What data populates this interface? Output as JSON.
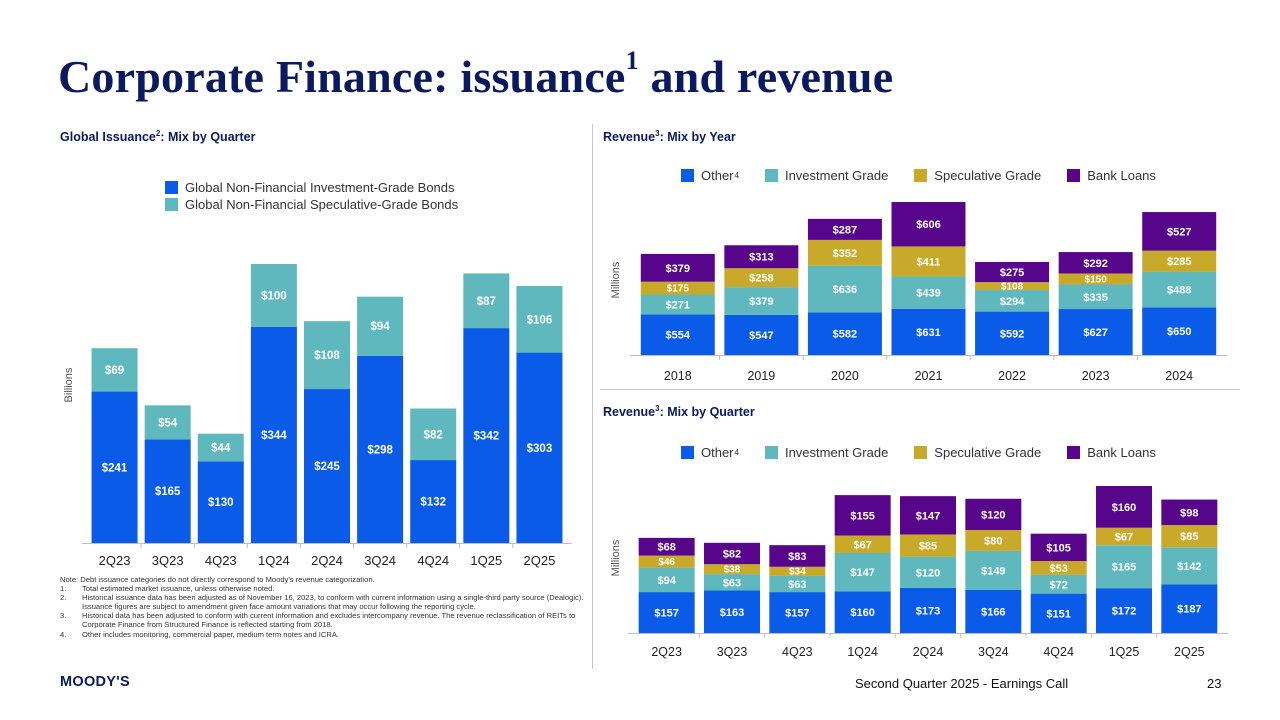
{
  "title": {
    "main": "Corporate Finance: issuance",
    "sup": "1",
    "tail": " and revenue"
  },
  "colors": {
    "blue": "#0a5ce8",
    "teal": "#5eb8bd",
    "gold": "#c9a92a",
    "purple": "#57068c",
    "navy": "#0b1a5e"
  },
  "sections": {
    "issuance": {
      "title": "Global Issuance",
      "sup": "2",
      "tail": ": Mix by Quarter"
    },
    "rev_year": {
      "title": "Revenue",
      "sup": "3",
      "tail": ": Mix by Year"
    },
    "rev_quarter": {
      "title": "Revenue",
      "sup": "3",
      "tail": ": Mix by Quarter"
    }
  },
  "legends": {
    "issuance": [
      "Global Non-Financial Investment-Grade Bonds",
      "Global Non-Financial Speculative-Grade Bonds"
    ],
    "revenue": {
      "other": "Other",
      "other_sup": "4",
      "ig": "Investment Grade",
      "sg": "Speculative Grade",
      "bl": "Bank Loans"
    }
  },
  "chart_data": [
    {
      "type": "bar",
      "stacked": true,
      "title": "Global Issuance: Mix by Quarter",
      "ylabel": "Billions",
      "categories": [
        "2Q23",
        "3Q23",
        "4Q23",
        "1Q24",
        "2Q24",
        "3Q24",
        "4Q24",
        "1Q25",
        "2Q25"
      ],
      "series": [
        {
          "name": "Global Non-Financial Investment-Grade Bonds",
          "values": [
            241,
            165,
            130,
            344,
            245,
            298,
            132,
            342,
            303
          ]
        },
        {
          "name": "Global Non-Financial Speculative-Grade Bonds",
          "values": [
            69,
            54,
            44,
            100,
            108,
            94,
            82,
            87,
            106
          ]
        }
      ],
      "ylim": [
        0,
        444
      ]
    },
    {
      "type": "bar",
      "stacked": true,
      "title": "Revenue: Mix by Year",
      "ylabel": "Millions",
      "categories": [
        "2018",
        "2019",
        "2020",
        "2021",
        "2022",
        "2023",
        "2024"
      ],
      "series": [
        {
          "name": "Other",
          "values": [
            554,
            547,
            582,
            631,
            592,
            627,
            650
          ]
        },
        {
          "name": "Investment Grade",
          "values": [
            271,
            379,
            636,
            439,
            294,
            335,
            488
          ]
        },
        {
          "name": "Speculative Grade",
          "values": [
            175,
            258,
            352,
            411,
            108,
            150,
            285
          ]
        },
        {
          "name": "Bank Loans",
          "values": [
            379,
            313,
            287,
            606,
            275,
            292,
            527
          ]
        }
      ],
      "ylim": [
        0,
        2087
      ]
    },
    {
      "type": "bar",
      "stacked": true,
      "title": "Revenue: Mix by Quarter",
      "ylabel": "Millions",
      "categories": [
        "2Q23",
        "3Q23",
        "4Q23",
        "1Q24",
        "2Q24",
        "3Q24",
        "4Q24",
        "1Q25",
        "2Q25"
      ],
      "series": [
        {
          "name": "Other",
          "values": [
            157,
            163,
            157,
            160,
            173,
            166,
            151,
            172,
            187
          ]
        },
        {
          "name": "Investment Grade",
          "values": [
            94,
            63,
            63,
            147,
            120,
            149,
            72,
            165,
            142
          ]
        },
        {
          "name": "Speculative Grade",
          "values": [
            46,
            38,
            34,
            67,
            85,
            80,
            53,
            67,
            85
          ]
        },
        {
          "name": "Bank Loans",
          "values": [
            68,
            82,
            83,
            155,
            147,
            120,
            105,
            160,
            98
          ]
        }
      ],
      "ylim": [
        0,
        564
      ]
    }
  ],
  "notes": {
    "intro": "Note: Debt issuance categories do not directly correspond to Moody's revenue categorization.",
    "items": [
      {
        "num": "1.",
        "text": "Total estimated market issuance, unless otherwise noted."
      },
      {
        "num": "2.",
        "text": "Historical issuance data has been adjusted as of November 16, 2023, to conform with current information using a single-third party source (Dealogic). Issuance figures are subject to amendment given face amount variations that may occur following the reporting cycle."
      },
      {
        "num": "3.",
        "text": "Historical data has been adjusted to conform with current information and excludes intercompany revenue. The revenue reclassification of REITs to Corporate Finance from Structured Finance is reflected starting from 2018."
      },
      {
        "num": "4.",
        "text": "Other includes monitoring, commercial paper, medium term notes and ICRA."
      }
    ]
  },
  "footer": {
    "logo": "MOODY'S",
    "event": "Second Quarter 2025 - Earnings Call",
    "page": "23"
  }
}
